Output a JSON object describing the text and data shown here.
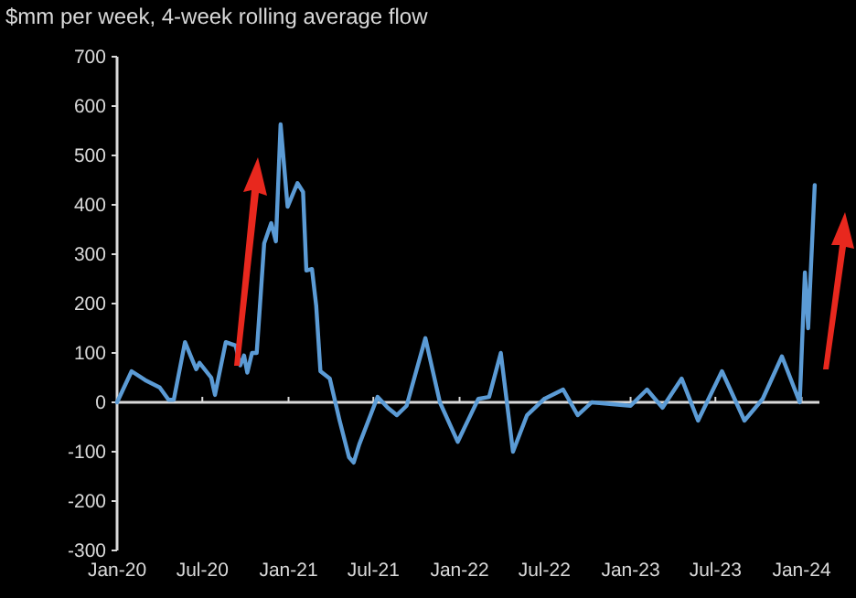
{
  "chart_data": {
    "type": "line",
    "title": "$mm per week, 4-week rolling average flow",
    "x": [
      "2020-01-01",
      "2020-02-01",
      "2020-03-01",
      "2020-04-01",
      "2020-04-20",
      "2020-05-01",
      "2020-05-25",
      "2020-06-10",
      "2020-06-18",
      "2020-06-25",
      "2020-07-20",
      "2020-07-28",
      "2020-08-20",
      "2020-09-10",
      "2020-09-20",
      "2020-09-28",
      "2020-10-05",
      "2020-10-15",
      "2020-10-25",
      "2020-11-01",
      "2020-11-10",
      "2020-11-25",
      "2020-12-05",
      "2020-12-15",
      "2020-12-30",
      "2021-01-20",
      "2021-02-01",
      "2021-02-08",
      "2021-02-20",
      "2021-03-01",
      "2021-03-10",
      "2021-03-30",
      "2021-04-20",
      "2021-05-10",
      "2021-05-20",
      "2021-06-01",
      "2021-07-10",
      "2021-08-01",
      "2021-08-20",
      "2021-09-10",
      "2021-10-20",
      "2021-11-20",
      "2021-12-28",
      "2022-02-10",
      "2022-03-05",
      "2022-03-30",
      "2022-04-25",
      "2022-05-25",
      "2022-07-01",
      "2022-08-10",
      "2022-09-10",
      "2022-10-10",
      "2023-01-01",
      "2023-02-05",
      "2023-03-10",
      "2023-04-20",
      "2023-05-25",
      "2023-07-15",
      "2023-09-01",
      "2023-10-10",
      "2023-11-20",
      "2023-12-28",
      "2024-01-08",
      "2024-01-15",
      "2024-01-29"
    ],
    "series": [
      {
        "color": "#5b9bd5",
        "values": [
          0,
          63,
          45,
          30,
          5,
          5,
          122,
          85,
          67,
          80,
          50,
          15,
          122,
          115,
          75,
          95,
          60,
          100,
          100,
          196,
          322,
          363,
          326,
          563,
          396,
          444,
          426,
          267,
          270,
          196,
          63,
          48,
          -37,
          -111,
          -122,
          -85,
          11,
          -11,
          -26,
          -7,
          130,
          0,
          -80,
          7,
          11,
          100,
          -100,
          -26,
          7,
          26,
          -26,
          0,
          -7,
          26,
          -11,
          48,
          -37,
          63,
          -37,
          7,
          93,
          0,
          263,
          150,
          440
        ]
      }
    ],
    "xlim": [
      "2020-01-01",
      "2024-02-08"
    ],
    "xticks": [
      {
        "value": "2020-01-01",
        "label": "Jan-20"
      },
      {
        "value": "2020-07-01",
        "label": "Jul-20"
      },
      {
        "value": "2021-01-01",
        "label": "Jan-21"
      },
      {
        "value": "2021-07-01",
        "label": "Jul-21"
      },
      {
        "value": "2022-01-01",
        "label": "Jan-22"
      },
      {
        "value": "2022-07-01",
        "label": "Jul-22"
      },
      {
        "value": "2023-01-01",
        "label": "Jan-23"
      },
      {
        "value": "2023-07-01",
        "label": "Jul-23"
      },
      {
        "value": "2024-01-01",
        "label": "Jan-24"
      }
    ],
    "ylim": [
      -300,
      700
    ],
    "yticks": [
      -300,
      -200,
      -100,
      0,
      100,
      200,
      300,
      400,
      500,
      600,
      700
    ],
    "marker": "none",
    "line_style": "solid"
  }
}
